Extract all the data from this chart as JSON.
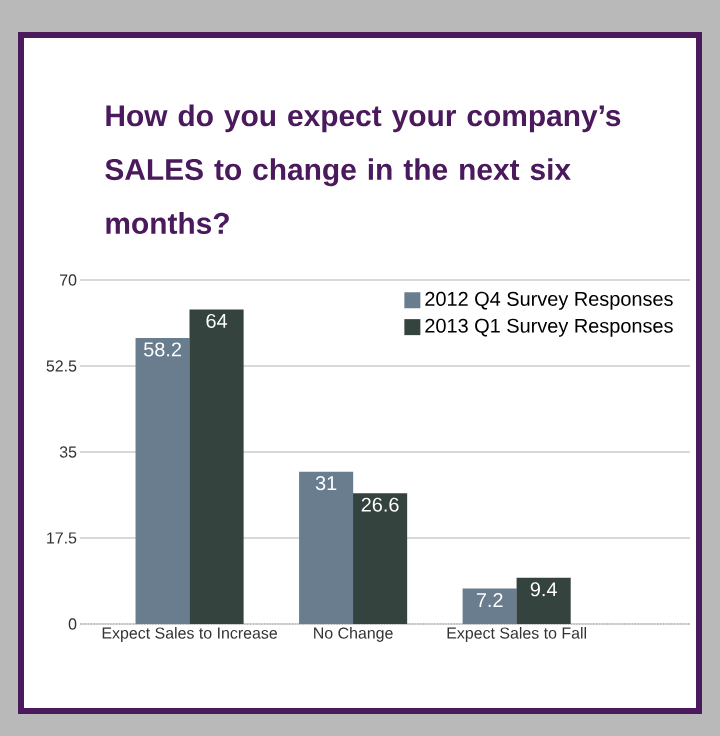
{
  "chart_data": {
    "type": "bar",
    "title": "How do you expect your company’s SALES to change in the next six months?",
    "categories": [
      "Expect Sales to Increase",
      "No Change",
      "Expect Sales to Fall"
    ],
    "series": [
      {
        "name": "2012 Q4 Survey Responses",
        "color": "#6a7d8f",
        "values": [
          58.2,
          31,
          7.2
        ]
      },
      {
        "name": "2013 Q1 Survey Responses",
        "color": "#35433f",
        "values": [
          64,
          26.6,
          9.4
        ]
      }
    ],
    "ylim": [
      0,
      70
    ],
    "yticks": [
      0,
      17.5,
      35,
      52.5,
      70
    ],
    "grid": "y",
    "legend": "top right",
    "data_labels": true
  }
}
